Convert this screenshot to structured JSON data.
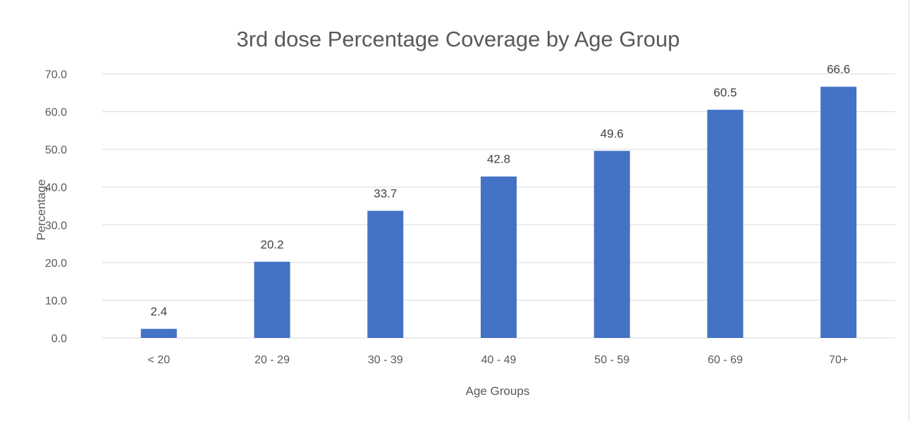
{
  "chart_data": {
    "type": "bar",
    "title": "3rd dose Percentage Coverage by Age Group",
    "xlabel": "Age Groups",
    "ylabel": "Percentage",
    "categories": [
      "< 20",
      "20 - 29",
      "30 - 39",
      "40 - 49",
      "50 - 59",
      "60 - 69",
      "70+"
    ],
    "values": [
      2.4,
      20.2,
      33.7,
      42.8,
      49.6,
      60.5,
      66.6
    ],
    "data_labels": [
      "2.4",
      "20.2",
      "33.7",
      "42.8",
      "49.6",
      "60.5",
      "66.6"
    ],
    "ylim": [
      0,
      70
    ],
    "yticks": [
      0,
      10,
      20,
      30,
      40,
      50,
      60,
      70
    ],
    "ytick_labels": [
      "0.0",
      "10.0",
      "20.0",
      "30.0",
      "40.0",
      "50.0",
      "60.0",
      "70.0"
    ],
    "grid": true,
    "legend": "none",
    "bar_color": "#4472c4",
    "grid_color": "#d9d9d9",
    "text_color": "#595959"
  }
}
